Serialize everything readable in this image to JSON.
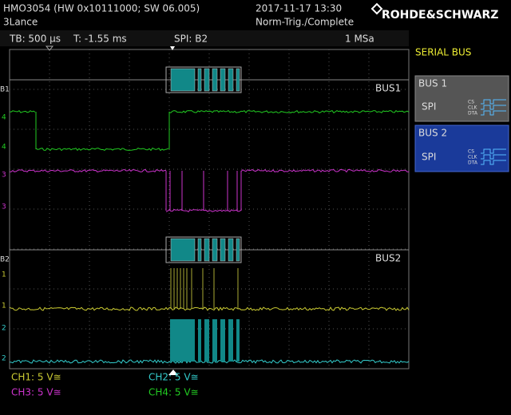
{
  "header": {
    "model": "HMO3054 (HW 0x10111000; SW 06.005)",
    "name": "3Lance",
    "datetime": "2017-11-17 13:30",
    "trigger_state": "Norm-Trig./Complete",
    "brand": "ROHDE&SCHWARZ"
  },
  "status": {
    "timebase": "TB: 500 µs",
    "trigger_time": "T: -1.55 ms",
    "trigger_source": "SPI: B2",
    "sample_rate": "1 MSa"
  },
  "screen": {
    "bus1_label": "BUS1",
    "bus2_label": "BUS2",
    "bus1_marker": "B1",
    "bus2_marker": "B2",
    "ch1_marker": "1",
    "ch2_marker": "2",
    "ch3_marker": "3",
    "ch4_marker": "4"
  },
  "channels": [
    "CH1: 5 V≅",
    "CH2: 5 V≅",
    "CH3: 5 V≅",
    "CH4: 5 V≅"
  ],
  "side_panel": {
    "title": "SERIAL BUS",
    "buses": [
      {
        "name": "BUS 1",
        "protocol": "SPI"
      },
      {
        "name": "BUS 2",
        "protocol": "SPI"
      }
    ],
    "icon_labels": [
      "CS",
      "CLK",
      "DTA"
    ]
  }
}
